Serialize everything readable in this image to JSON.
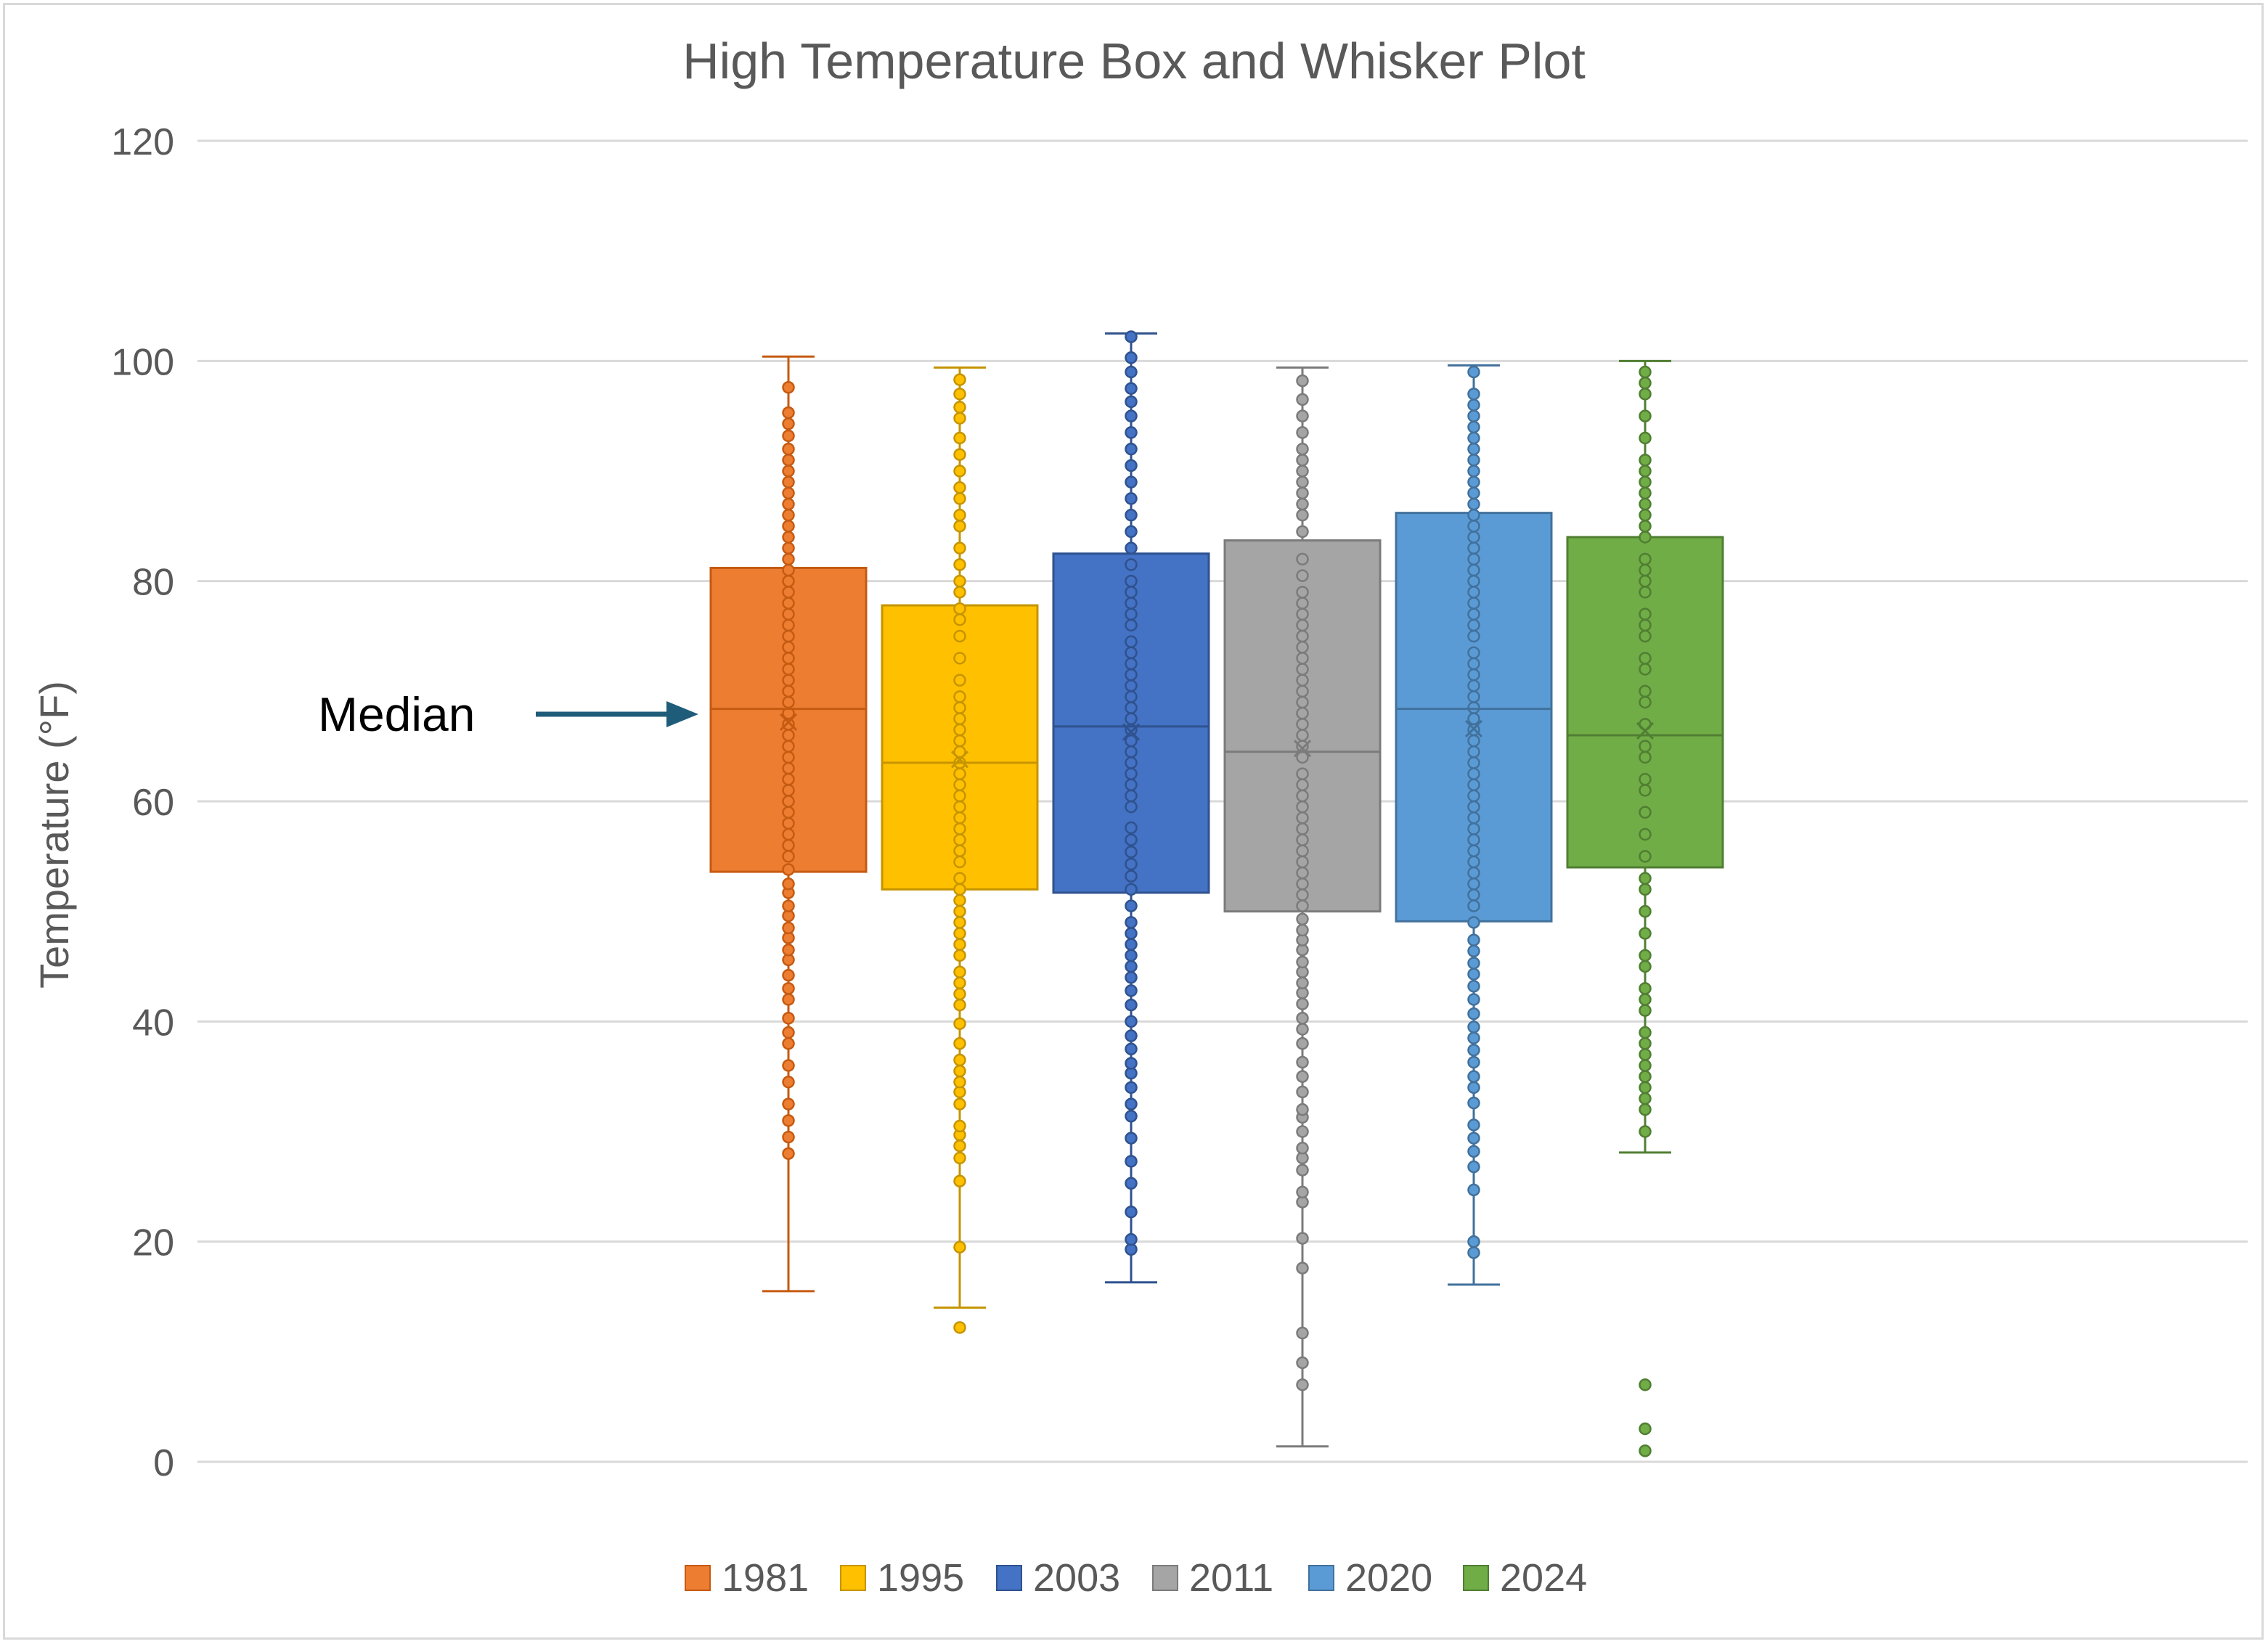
{
  "chart_data": {
    "type": "box",
    "title": "High Temperature Box and Whisker Plot",
    "ylabel": "Temperature (°F)",
    "xlabel": "",
    "ylim": [
      0,
      120
    ],
    "yticks": [
      0,
      20,
      40,
      60,
      80,
      100,
      120
    ],
    "grid": true,
    "legend_position": "bottom",
    "annotation": {
      "text": "Median",
      "target_series": "1981",
      "color": "#1f5c7a"
    },
    "series": [
      {
        "name": "1981",
        "color": "#ED7D31",
        "stroke": "#c55a11",
        "min": 15.5,
        "q1": 53.6,
        "median": 68.4,
        "q3": 81.2,
        "max": 100.4,
        "mean": 67.2,
        "points": [
          28,
          29.5,
          31,
          32.5,
          34.5,
          36,
          38,
          39,
          40.3,
          42,
          43,
          44.2,
          45.6,
          46.5,
          47.6,
          48.5,
          49.6,
          50.5,
          51.7,
          52.5,
          53.8,
          55,
          56,
          57,
          58,
          59,
          60,
          61,
          62,
          63,
          64,
          65,
          66,
          67,
          68,
          69,
          70,
          71,
          72,
          73,
          74,
          75,
          76,
          77,
          78,
          79,
          80,
          81,
          82,
          83,
          84,
          85,
          86,
          87,
          88,
          89,
          90,
          91,
          92,
          93.2,
          94.3,
          95.3,
          97.6
        ]
      },
      {
        "name": "1995",
        "color": "#FFC000",
        "stroke": "#c59400",
        "min": 14,
        "q1": 52,
        "median": 63.5,
        "q3": 77.8,
        "max": 99.4,
        "mean": 63.8,
        "points": [
          12.2,
          19.5,
          25.5,
          27.6,
          28.7,
          29.7,
          30.5,
          32.5,
          33.6,
          34.5,
          35.5,
          36.5,
          38,
          39.8,
          41.5,
          42.5,
          43.5,
          44.5,
          46,
          47,
          48,
          49,
          50,
          51,
          52,
          53,
          54.5,
          55.5,
          56.5,
          57.5,
          58.5,
          59.5,
          60.5,
          61.5,
          62.5,
          63.5,
          64.5,
          65.5,
          66.5,
          67.5,
          68.5,
          69.5,
          71,
          73,
          75,
          76.5,
          77.5,
          79,
          80,
          81.5,
          83,
          85,
          86,
          87.5,
          88.5,
          90,
          91.5,
          93,
          94.8,
          95.8,
          97,
          98.3
        ]
      },
      {
        "name": "2003",
        "color": "#4472C4",
        "stroke": "#2f528f",
        "min": 16.3,
        "q1": 51.7,
        "median": 66.8,
        "q3": 82.5,
        "max": 102.5,
        "mean": 66.3,
        "points": [
          19.3,
          20.2,
          22.7,
          25.3,
          27.3,
          29.4,
          31.4,
          32.5,
          34,
          35.3,
          36.2,
          37.5,
          38.7,
          40,
          41.5,
          42.8,
          44,
          45,
          46,
          47,
          48,
          49,
          50.5,
          52,
          53.2,
          54.3,
          55.4,
          56.5,
          57.6,
          59.5,
          60.5,
          61.5,
          62.5,
          63.5,
          64.5,
          65.5,
          66.5,
          67.5,
          68.5,
          69.5,
          70.5,
          71.5,
          72.5,
          73.5,
          74.5,
          76,
          77,
          78,
          79,
          80,
          81.5,
          83,
          84.5,
          86,
          87.5,
          89,
          90.5,
          92,
          93.5,
          95,
          96.3,
          97.5,
          99,
          100.3,
          102.2
        ]
      },
      {
        "name": "2011",
        "color": "#A5A5A5",
        "stroke": "#7b7b7b",
        "min": 1.4,
        "q1": 50,
        "median": 64.5,
        "q3": 83.7,
        "max": 99.4,
        "mean": 64.8,
        "points": [
          7,
          9,
          11.7,
          17.6,
          20.3,
          23.6,
          24.5,
          26.5,
          27.6,
          28.5,
          30,
          31.3,
          32,
          33.6,
          35,
          36.3,
          38,
          39.3,
          40.3,
          41.6,
          42.6,
          43.5,
          44.5,
          45.4,
          46.5,
          47.4,
          48.3,
          49.3,
          50.5,
          51.5,
          52.5,
          53.5,
          54.5,
          55.5,
          56.5,
          57.5,
          58.5,
          59.5,
          60.5,
          61.5,
          62.5,
          64,
          65,
          66,
          67,
          68,
          69,
          70,
          71,
          72,
          73,
          74,
          75,
          76,
          77,
          78,
          79,
          80.5,
          82,
          84.5,
          86,
          87,
          88,
          89,
          90,
          91,
          92,
          93.5,
          95,
          96.5,
          98.2
        ]
      },
      {
        "name": "2020",
        "color": "#5B9BD5",
        "stroke": "#41719c",
        "min": 16.1,
        "q1": 49.1,
        "median": 68.4,
        "q3": 86.2,
        "max": 99.6,
        "mean": 66.6,
        "points": [
          19,
          20,
          24.7,
          26.8,
          28.2,
          29.4,
          30.6,
          32.6,
          34,
          35,
          36.3,
          37.4,
          38.5,
          39.5,
          40.7,
          42,
          43.2,
          44.3,
          45.3,
          46.4,
          47.4,
          49,
          50.5,
          51.5,
          52.5,
          53.5,
          54.5,
          55.5,
          56.5,
          57.5,
          58.5,
          59.5,
          60.5,
          61.5,
          62.5,
          63.5,
          64.5,
          65.5,
          66.5,
          67.5,
          68.5,
          69.5,
          70.5,
          71.5,
          72.5,
          73.5,
          75,
          76,
          77,
          78,
          79,
          80,
          81,
          82,
          83,
          84,
          85,
          86,
          87,
          88,
          89,
          90,
          91,
          92,
          93,
          94,
          95,
          96,
          97,
          99
        ]
      },
      {
        "name": "2024",
        "color": "#70AD47",
        "stroke": "#507e32",
        "min": 28.1,
        "q1": 54,
        "median": 66,
        "q3": 84,
        "max": 100,
        "mean": 66.4,
        "points": [
          1,
          3,
          7,
          30,
          32,
          33,
          34,
          35,
          36,
          37,
          38,
          39,
          41,
          42,
          43,
          45,
          46,
          48,
          50,
          52,
          53,
          55,
          57,
          59,
          61,
          62,
          64,
          65,
          67,
          69,
          70,
          72,
          73,
          75,
          76,
          77,
          79,
          80,
          81,
          82,
          84,
          85,
          86,
          87,
          88,
          89,
          90,
          91,
          93,
          95,
          97,
          98,
          99
        ]
      }
    ]
  }
}
